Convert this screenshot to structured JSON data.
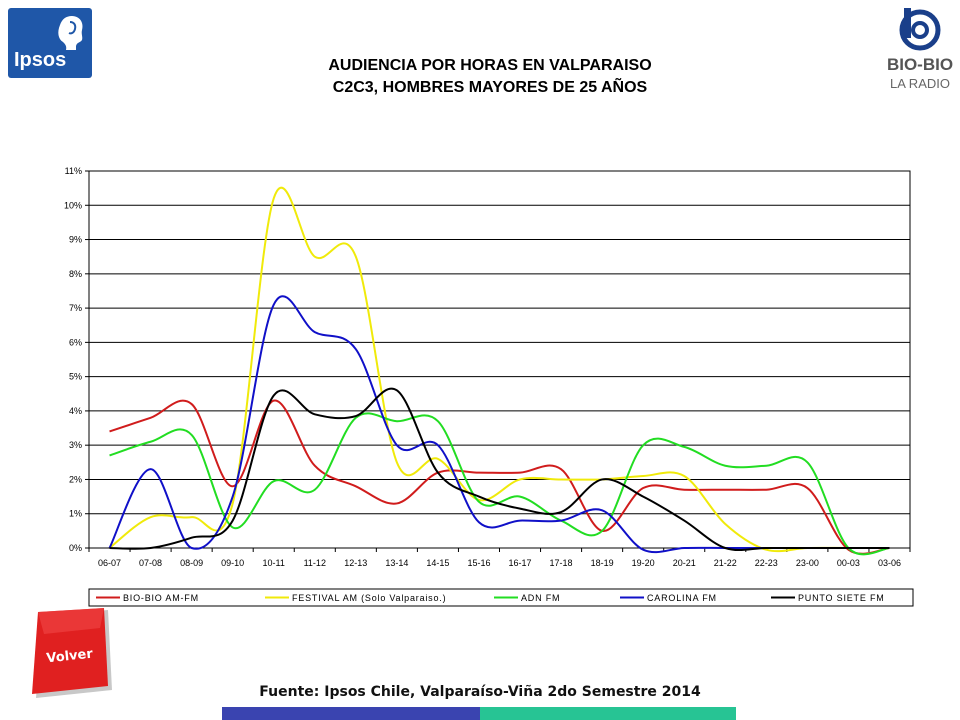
{
  "logos": {
    "left_text": "Ipsos",
    "right_main": "BIO-BIO",
    "right_sub": "LA RADIO"
  },
  "title": {
    "line1": "AUDIENCIA POR HORAS EN VALPARAISO",
    "line2": "C2C3, HOMBRES MAYORES DE 25 AÑOS"
  },
  "volver_button": {
    "label": "Volver"
  },
  "footer": {
    "source": "Fuente: Ipsos Chile, Valparaíso-Viña 2do Semestre 2014"
  },
  "colors": {
    "bio_bio": "#d01c1c",
    "festival": "#f0ea0a",
    "adn": "#22dd22",
    "carolina": "#1010c8",
    "punto_siete": "#000000",
    "footer_bar_left": "#3a44b0",
    "footer_bar_right": "#27c494"
  },
  "chart_data": {
    "type": "line",
    "categories": [
      "06-07",
      "07-08",
      "08-09",
      "09-10",
      "10-11",
      "11-12",
      "12-13",
      "13-14",
      "14-15",
      "15-16",
      "16-17",
      "17-18",
      "18-19",
      "19-20",
      "20-21",
      "21-22",
      "22-23",
      "23-00",
      "00-03",
      "03-06"
    ],
    "ylim": [
      0,
      11
    ],
    "yticks": [
      "0%",
      "1%",
      "2%",
      "3%",
      "4%",
      "5%",
      "6%",
      "7%",
      "8%",
      "9%",
      "10%",
      "11%"
    ],
    "grid": true,
    "legend_position": "bottom",
    "series": [
      {
        "name": "BIO-BIO AM-FM",
        "color": "#d01c1c",
        "values": [
          3.4,
          3.8,
          4.2,
          1.8,
          4.3,
          2.4,
          1.8,
          1.3,
          2.2,
          2.2,
          2.2,
          2.3,
          0.5,
          1.75,
          1.7,
          1.7,
          1.7,
          1.75,
          -0.05,
          0
        ]
      },
      {
        "name": "FESTIVAL AM (Solo Valparaiso.)",
        "color": "#f0ea0a",
        "values": [
          0,
          0.9,
          0.9,
          1.3,
          10.2,
          8.5,
          8.5,
          2.5,
          2.6,
          1.4,
          2.0,
          2.0,
          2.0,
          2.1,
          2.1,
          0.7,
          -0.05,
          0,
          0,
          0
        ]
      },
      {
        "name": "ADN FM",
        "color": "#22dd22",
        "values": [
          2.7,
          3.1,
          3.3,
          0.6,
          1.95,
          1.7,
          3.8,
          3.7,
          3.7,
          1.35,
          1.5,
          0.8,
          0.5,
          3.0,
          2.95,
          2.4,
          2.4,
          2.5,
          0,
          0
        ]
      },
      {
        "name": "CAROLINA FM",
        "color": "#1010c8",
        "values": [
          0,
          2.3,
          0,
          1.5,
          7.1,
          6.3,
          5.8,
          3.0,
          3.0,
          0.75,
          0.8,
          0.8,
          1.1,
          -0.05,
          0,
          0,
          0,
          0,
          0,
          0
        ]
      },
      {
        "name": "PUNTO SIETE FM",
        "color": "#000000",
        "values": [
          0,
          0,
          0.3,
          0.8,
          4.45,
          3.9,
          3.85,
          4.6,
          2.2,
          1.5,
          1.15,
          1.05,
          2.0,
          1.5,
          0.8,
          0,
          0,
          0,
          0,
          0
        ]
      }
    ]
  }
}
